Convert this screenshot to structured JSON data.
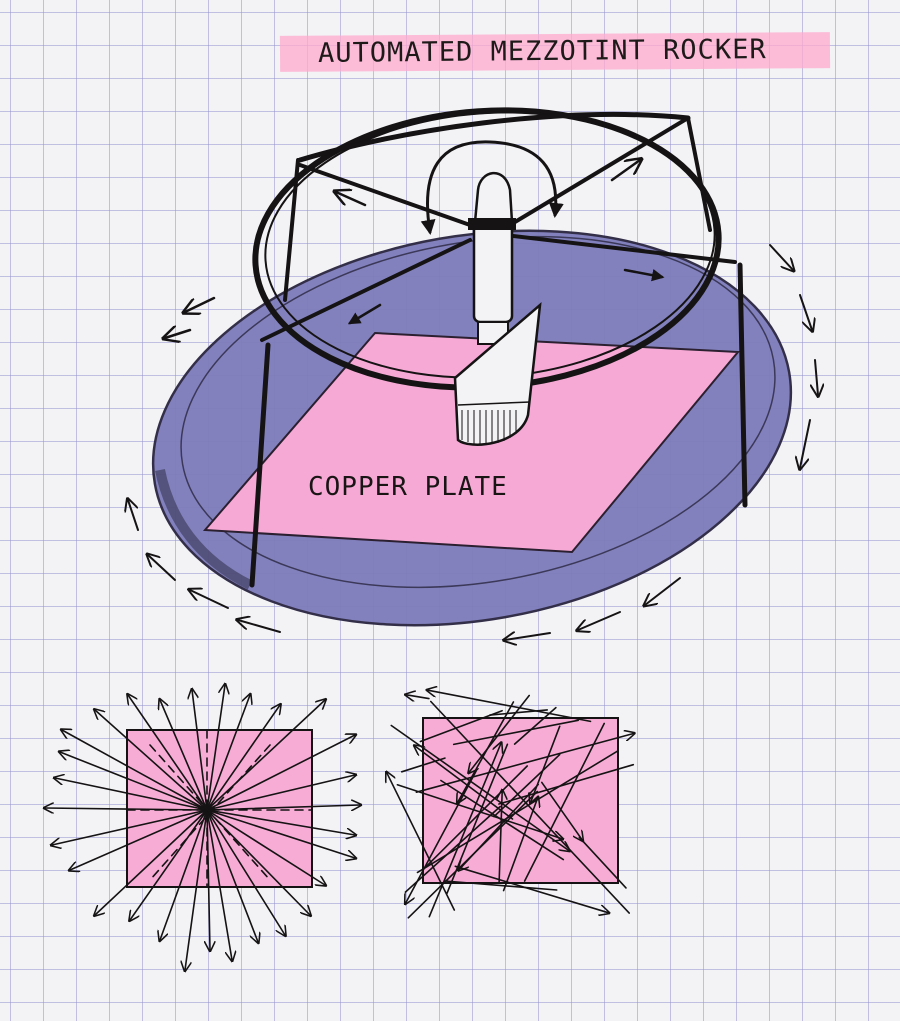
{
  "title": "AUTOMATED MEZZOTINT ROCKER",
  "plate_label": "COPPER PLATE",
  "colors": {
    "grid_lines": "#9696d2",
    "paper": "#f3f2f5",
    "highlight_pink": "#ffaacd",
    "platform_purple": "#7c7cba",
    "ink": "#151313"
  },
  "icons": {
    "rotation": "curved-arrow-icon",
    "radial_pattern": "radial-arrows-icon",
    "random_pattern": "random-lines-icon"
  }
}
